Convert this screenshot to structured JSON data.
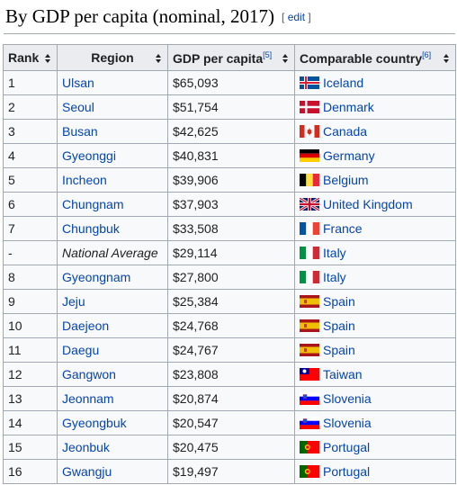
{
  "heading": {
    "title": "By GDP per capita (nominal, 2017)",
    "edit_open": "[",
    "edit_label": "edit",
    "edit_close": "]"
  },
  "columns": {
    "rank": "Rank",
    "region": "Region",
    "gdp": "GDP per capita",
    "gdp_ref": "[5]",
    "country": "Comparable country",
    "country_ref": "[6]"
  },
  "rows": [
    {
      "rank": "1",
      "region": "Ulsan",
      "gdp": "$65,093",
      "country": "Iceland",
      "flag": "iceland-flag"
    },
    {
      "rank": "2",
      "region": "Seoul",
      "gdp": "$51,754",
      "country": "Denmark",
      "flag": "denmark-flag"
    },
    {
      "rank": "3",
      "region": "Busan",
      "gdp": "$42,625",
      "country": "Canada",
      "flag": "canada-flag"
    },
    {
      "rank": "4",
      "region": "Gyeonggi",
      "gdp": "$40,831",
      "country": "Germany",
      "flag": "germany-flag"
    },
    {
      "rank": "5",
      "region": "Incheon",
      "gdp": "$39,906",
      "country": "Belgium",
      "flag": "belgium-flag"
    },
    {
      "rank": "6",
      "region": "Chungnam",
      "gdp": "$37,903",
      "country": "United Kingdom",
      "flag": "united-kingdom-flag"
    },
    {
      "rank": "7",
      "region": "Chungbuk",
      "gdp": "$33,508",
      "country": "France",
      "flag": "france-flag"
    },
    {
      "rank": "-",
      "region": "National Average",
      "gdp": "$29,114",
      "country": "Italy",
      "flag": "italy-flag"
    },
    {
      "rank": "8",
      "region": "Gyeongnam",
      "gdp": "$27,800",
      "country": "Italy",
      "flag": "italy-flag"
    },
    {
      "rank": "9",
      "region": "Jeju",
      "gdp": "$25,384",
      "country": "Spain",
      "flag": "spain-flag"
    },
    {
      "rank": "10",
      "region": "Daejeon",
      "gdp": "$24,768",
      "country": "Spain",
      "flag": "spain-flag"
    },
    {
      "rank": "11",
      "region": "Daegu",
      "gdp": "$24,767",
      "country": "Spain",
      "flag": "spain-flag"
    },
    {
      "rank": "12",
      "region": "Gangwon",
      "gdp": "$23,808",
      "country": "Taiwan",
      "flag": "taiwan-flag"
    },
    {
      "rank": "13",
      "region": "Jeonnam",
      "gdp": "$20,874",
      "country": "Slovenia",
      "flag": "slovenia-flag"
    },
    {
      "rank": "14",
      "region": "Gyeongbuk",
      "gdp": "$20,547",
      "country": "Slovenia",
      "flag": "slovenia-flag"
    },
    {
      "rank": "15",
      "region": "Jeonbuk",
      "gdp": "$20,475",
      "country": "Portugal",
      "flag": "portugal-flag"
    },
    {
      "rank": "16",
      "region": "Gwangju",
      "gdp": "$19,497",
      "country": "Portugal",
      "flag": "portugal-flag"
    }
  ]
}
